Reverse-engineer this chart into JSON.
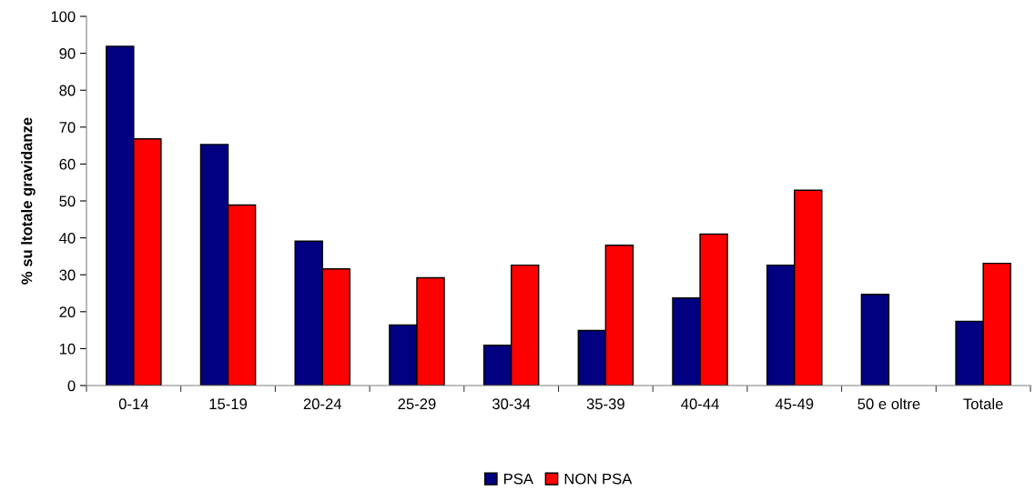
{
  "chart_data": {
    "type": "bar",
    "ylabel": "% su ltotale gravidanze",
    "categories": [
      "0-14",
      "15-19",
      "20-24",
      "25-29",
      "30-34",
      "35-39",
      "40-44",
      "45-49",
      "50 e oltre",
      "Totale"
    ],
    "series": [
      {
        "name": "PSA",
        "color": "#000080",
        "values": [
          91.9,
          65.3,
          39.1,
          16.4,
          10.9,
          14.9,
          23.7,
          32.6,
          24.7,
          17.4
        ]
      },
      {
        "name": "NON PSA",
        "color": "#ff0000",
        "values": [
          66.8,
          48.9,
          31.6,
          29.2,
          32.6,
          38.0,
          41.0,
          52.9,
          null,
          33.1
        ]
      }
    ],
    "ylim": [
      0,
      100
    ],
    "yticks": [
      0,
      10,
      20,
      30,
      40,
      50,
      60,
      70,
      80,
      90,
      100
    ],
    "grid": false,
    "legend": "bottom"
  }
}
